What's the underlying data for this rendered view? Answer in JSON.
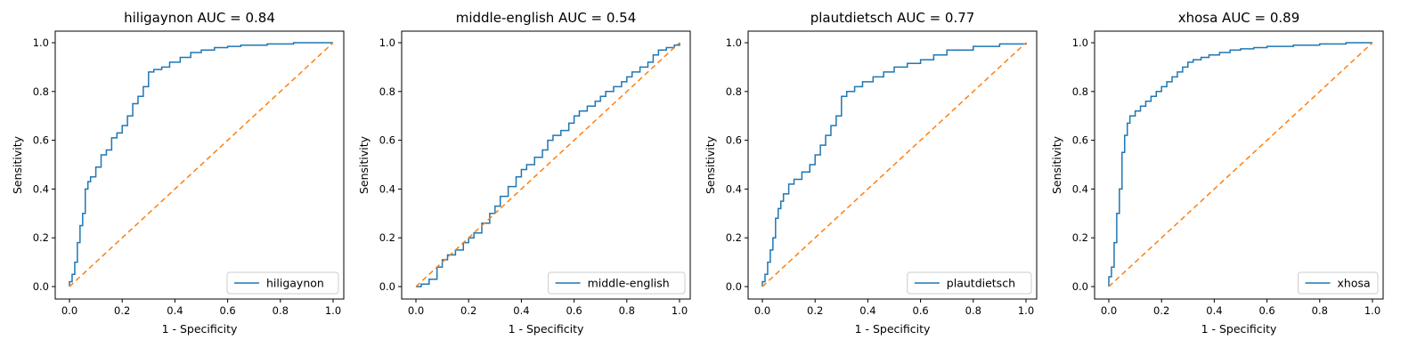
{
  "colors": {
    "roc": "#1f77b4",
    "diagonal": "#ff7f0e"
  },
  "chart_data": [
    {
      "type": "line",
      "title": "hiligaynon AUC = 0.84",
      "xlabel": "1 - Specificity",
      "ylabel": "Sensitivity",
      "xlim": [
        0,
        1
      ],
      "ylim": [
        0,
        1
      ],
      "xticks": [
        "0.0",
        "0.2",
        "0.4",
        "0.6",
        "0.8",
        "1.0"
      ],
      "yticks": [
        "0.0",
        "0.2",
        "0.4",
        "0.6",
        "0.8",
        "1.0"
      ],
      "legend_position": "lower-right",
      "series": [
        {
          "name": "hiligaynon",
          "style": "solid",
          "x": [
            0,
            0,
            0.01,
            0.02,
            0.03,
            0.04,
            0.05,
            0.06,
            0.07,
            0.08,
            0.1,
            0.12,
            0.14,
            0.16,
            0.18,
            0.2,
            0.22,
            0.24,
            0.26,
            0.28,
            0.3,
            0.32,
            0.35,
            0.38,
            0.42,
            0.46,
            0.5,
            0.55,
            0.6,
            0.65,
            0.75,
            0.85,
            1.0
          ],
          "y": [
            0,
            0.02,
            0.05,
            0.1,
            0.18,
            0.25,
            0.3,
            0.4,
            0.43,
            0.45,
            0.49,
            0.54,
            0.56,
            0.61,
            0.63,
            0.66,
            0.7,
            0.75,
            0.78,
            0.82,
            0.88,
            0.89,
            0.9,
            0.92,
            0.94,
            0.96,
            0.97,
            0.98,
            0.985,
            0.99,
            0.995,
            1.0,
            1.0
          ]
        },
        {
          "style": "dashed",
          "x": [
            0,
            1
          ],
          "y": [
            0,
            1
          ]
        }
      ]
    },
    {
      "type": "line",
      "title": "middle-english AUC = 0.54",
      "xlabel": "1 - Specificity",
      "ylabel": "Sensitivity",
      "xlim": [
        0,
        1
      ],
      "ylim": [
        0,
        1
      ],
      "xticks": [
        "0.0",
        "0.2",
        "0.4",
        "0.6",
        "0.8",
        "1.0"
      ],
      "yticks": [
        "0.0",
        "0.2",
        "0.4",
        "0.6",
        "0.8",
        "1.0"
      ],
      "legend_position": "lower-right",
      "series": [
        {
          "name": "middle-english",
          "style": "solid",
          "x": [
            0,
            0.02,
            0.05,
            0.08,
            0.1,
            0.12,
            0.15,
            0.18,
            0.2,
            0.22,
            0.25,
            0.28,
            0.3,
            0.32,
            0.35,
            0.38,
            0.4,
            0.42,
            0.45,
            0.48,
            0.5,
            0.52,
            0.55,
            0.58,
            0.6,
            0.62,
            0.65,
            0.68,
            0.7,
            0.72,
            0.75,
            0.78,
            0.8,
            0.82,
            0.85,
            0.88,
            0.9,
            0.92,
            0.95,
            0.98,
            1.0
          ],
          "y": [
            0,
            0.01,
            0.03,
            0.08,
            0.11,
            0.13,
            0.15,
            0.18,
            0.2,
            0.22,
            0.26,
            0.3,
            0.33,
            0.37,
            0.41,
            0.45,
            0.48,
            0.5,
            0.53,
            0.56,
            0.6,
            0.62,
            0.64,
            0.67,
            0.7,
            0.72,
            0.74,
            0.76,
            0.78,
            0.8,
            0.82,
            0.84,
            0.86,
            0.88,
            0.9,
            0.92,
            0.95,
            0.97,
            0.98,
            0.99,
            1.0
          ]
        },
        {
          "style": "dashed",
          "x": [
            0,
            1
          ],
          "y": [
            0,
            1
          ]
        }
      ]
    },
    {
      "type": "line",
      "title": "plautdietsch AUC = 0.77",
      "xlabel": "1 - Specificity",
      "ylabel": "Sensitivity",
      "xlim": [
        0,
        1
      ],
      "ylim": [
        0,
        1
      ],
      "xticks": [
        "0.0",
        "0.2",
        "0.4",
        "0.6",
        "0.8",
        "1.0"
      ],
      "yticks": [
        "0.0",
        "0.2",
        "0.4",
        "0.6",
        "0.8",
        "1.0"
      ],
      "legend_position": "lower-right",
      "series": [
        {
          "name": "plautdietsch",
          "style": "solid",
          "x": [
            0,
            0,
            0.01,
            0.02,
            0.03,
            0.04,
            0.05,
            0.06,
            0.07,
            0.08,
            0.1,
            0.12,
            0.15,
            0.18,
            0.2,
            0.22,
            0.24,
            0.26,
            0.28,
            0.3,
            0.32,
            0.35,
            0.38,
            0.42,
            0.46,
            0.5,
            0.55,
            0.6,
            0.65,
            0.7,
            0.8,
            0.9,
            1.0
          ],
          "y": [
            0,
            0.02,
            0.05,
            0.1,
            0.15,
            0.2,
            0.28,
            0.32,
            0.35,
            0.38,
            0.42,
            0.44,
            0.47,
            0.5,
            0.54,
            0.58,
            0.62,
            0.66,
            0.7,
            0.78,
            0.8,
            0.82,
            0.84,
            0.86,
            0.88,
            0.9,
            0.915,
            0.93,
            0.95,
            0.97,
            0.985,
            0.995,
            1.0
          ]
        },
        {
          "style": "dashed",
          "x": [
            0,
            1
          ],
          "y": [
            0,
            1
          ]
        }
      ]
    },
    {
      "type": "line",
      "title": "xhosa AUC = 0.89",
      "xlabel": "1 - Specificity",
      "ylabel": "Sensitivity",
      "xlim": [
        0,
        1
      ],
      "ylim": [
        0,
        1
      ],
      "xticks": [
        "0.0",
        "0.2",
        "0.4",
        "0.6",
        "0.8",
        "1.0"
      ],
      "yticks": [
        "0.0",
        "0.2",
        "0.4",
        "0.6",
        "0.8",
        "1.0"
      ],
      "legend_position": "lower-right",
      "series": [
        {
          "name": "xhosa",
          "style": "solid",
          "x": [
            0,
            0,
            0.01,
            0.02,
            0.03,
            0.04,
            0.05,
            0.06,
            0.07,
            0.08,
            0.1,
            0.12,
            0.14,
            0.16,
            0.18,
            0.2,
            0.22,
            0.24,
            0.26,
            0.28,
            0.3,
            0.32,
            0.35,
            0.38,
            0.42,
            0.46,
            0.5,
            0.55,
            0.6,
            0.7,
            0.8,
            0.9,
            1.0
          ],
          "y": [
            0,
            0.04,
            0.08,
            0.18,
            0.3,
            0.4,
            0.55,
            0.62,
            0.67,
            0.7,
            0.72,
            0.74,
            0.76,
            0.78,
            0.8,
            0.82,
            0.84,
            0.86,
            0.88,
            0.9,
            0.92,
            0.93,
            0.94,
            0.95,
            0.96,
            0.97,
            0.975,
            0.98,
            0.985,
            0.99,
            0.995,
            1.0,
            1.0
          ]
        },
        {
          "style": "dashed",
          "x": [
            0,
            1
          ],
          "y": [
            0,
            1
          ]
        }
      ]
    }
  ]
}
